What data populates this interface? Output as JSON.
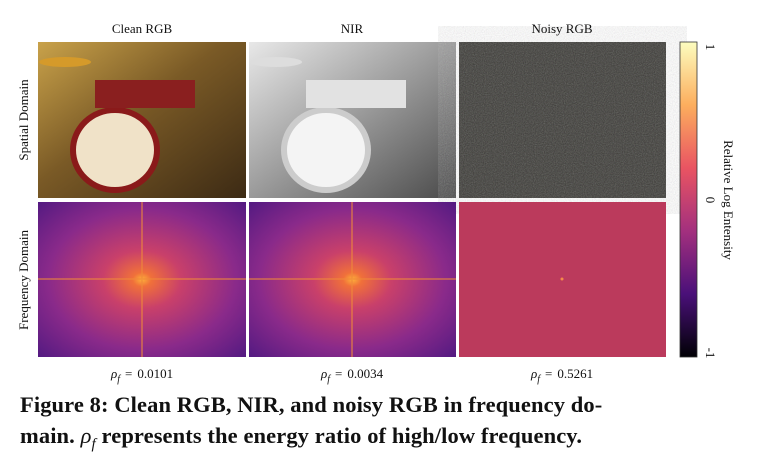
{
  "figure": {
    "column_titles": [
      "Clean RGB",
      "NIR",
      "Noisy RGB"
    ],
    "row_titles": [
      "Spatial Domain",
      "Frequency Domain"
    ],
    "colorbar": {
      "label": "Relative Log Entensity",
      "ticks": [
        1,
        0,
        -1
      ]
    },
    "ratios": [
      {
        "symbol": "ρ",
        "subscript": "f",
        "relation": "=",
        "value": "0.0101"
      },
      {
        "symbol": "ρ",
        "subscript": "f",
        "relation": "=",
        "value": "0.0034"
      },
      {
        "symbol": "ρ",
        "subscript": "f",
        "relation": "=",
        "value": "0.5261"
      }
    ]
  },
  "caption": {
    "line1": "Figure 8: Clean RGB, NIR, and noisy RGB in frequency do-",
    "line2_start": "main.",
    "symbol": "ρ",
    "subscript": "f",
    "line2_end": "represents the energy ratio of high/low frequency."
  }
}
